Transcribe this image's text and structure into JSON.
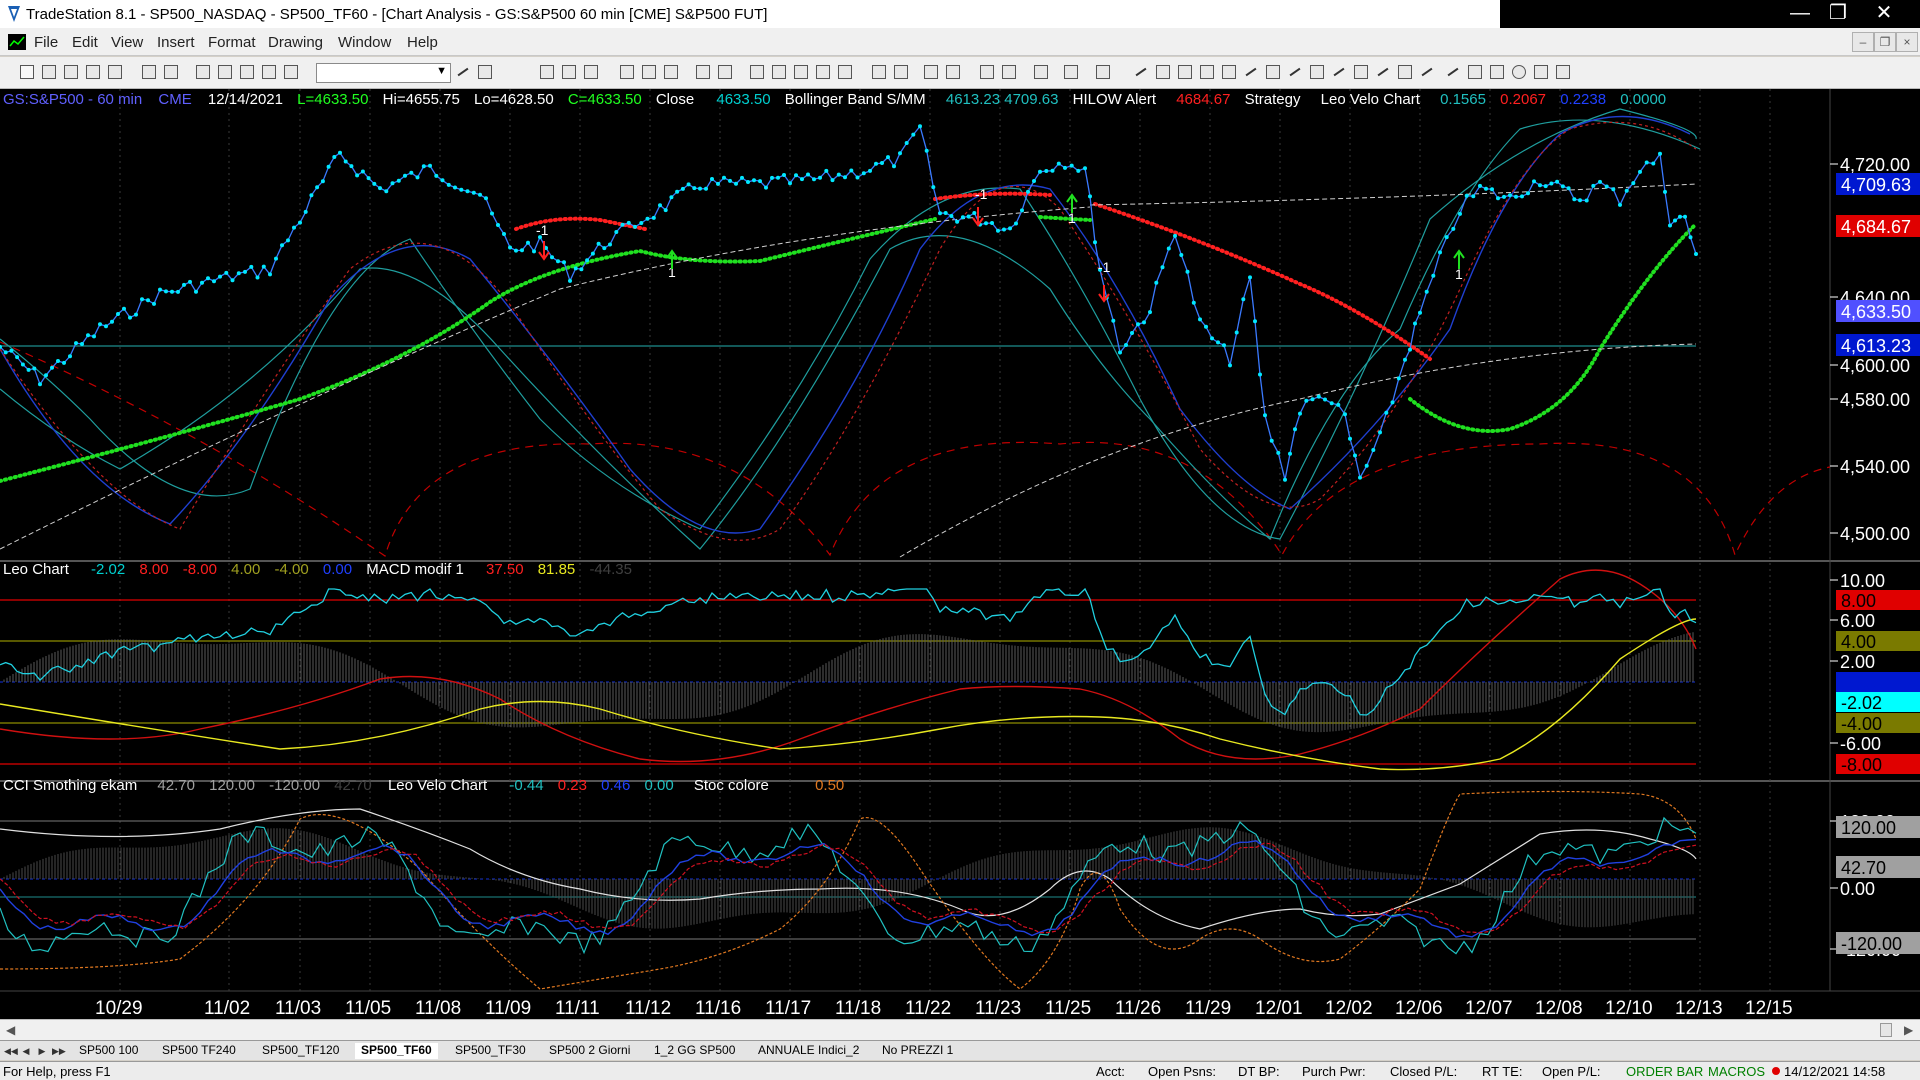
{
  "window": {
    "title": "TradeStation 8.1 - SP500_NASDAQ - SP500_TF60 - [Chart Analysis - GS:S&P500  60 min  [CME] S&P500 FUT]",
    "controls": [
      "minimize",
      "maximize",
      "close"
    ]
  },
  "menu": [
    "File",
    "Edit",
    "View",
    "Insert",
    "Format",
    "Drawing",
    "Window",
    "Help"
  ],
  "toolbar": {
    "icons": [
      "new",
      "open",
      "save",
      "copy",
      "paste",
      "print",
      "print-preview",
      "format",
      "lock",
      "tools",
      "symbol",
      "combo",
      "find",
      "bar-chart",
      "layers",
      "snapshot",
      "zoom-in",
      "zoom-out",
      "pointer",
      "trendline",
      "horizontal-line",
      "vertical-line",
      "fibonacci",
      "channel",
      "arc",
      "ellipse",
      "rectangle",
      "text"
    ]
  },
  "status_line": {
    "symbol_info": {
      "symbol": "GS:S&P500 - 60 min",
      "exchange": "CME",
      "date": "12/14/2021",
      "last": "L=4633.50",
      "high": "Hi=4655.75",
      "low": "Lo=4628.50",
      "close_c": "C=4633.50",
      "close_label": "Close",
      "close_value": "4633.50",
      "bb_label": "Bollinger Band S/MM",
      "bb_values": "4613.23  4709.63",
      "hilow_label": "HILOW Alert",
      "hilow_value": "4684.67",
      "strategy_label": "Strategy",
      "velo_label": "Leo Velo Chart",
      "velo_v1": "0.1565",
      "velo_v2": "0.2067",
      "velo_v3": "0.2238",
      "velo_v4": "0.0000"
    }
  },
  "panes": {
    "price": {
      "y_ticks": [
        "4,720.00",
        "4,640.00",
        "4,600.00",
        "4,580.00",
        "4,540.00",
        "4,500.00"
      ],
      "markers": [
        {
          "value": "4,709.63",
          "color": "#0000ff"
        },
        {
          "value": "4,684.67",
          "color": "#ff0000"
        },
        {
          "value": "4,633.50",
          "color": "#6060ff"
        },
        {
          "value": "4,613.23",
          "color": "#0000ff"
        }
      ],
      "trade_labels": [
        "-1",
        "-1",
        "1",
        "1",
        "-1",
        "1"
      ]
    },
    "leo": {
      "title": "Leo Chart",
      "values": [
        "-2.02",
        "8.00",
        "-8.00",
        "4.00",
        "-4.00",
        "0.00"
      ],
      "macd_label": "MACD modif 1",
      "macd_values": [
        "37.50",
        "81.85",
        "-44.35"
      ],
      "y_ticks": [
        "10.00",
        "6.00",
        "2.00",
        "-6.00"
      ],
      "markers": [
        {
          "value": "8.00",
          "color": "#ff0000"
        },
        {
          "value": "4.00",
          "color": "#7a7a00"
        },
        {
          "value": "0.00",
          "color": "#0000ff"
        },
        {
          "value": "-2.02",
          "color": "#00ffff"
        },
        {
          "value": "-4.00",
          "color": "#7a7a00"
        },
        {
          "value": "-8.00",
          "color": "#ff0000"
        }
      ]
    },
    "cci": {
      "title": "CCI Smothing ekam",
      "values": [
        "42.70",
        "120.00",
        "-120.00",
        "42.70"
      ],
      "velo_label": "Leo Velo Chart",
      "velo_values": [
        "-0.44",
        "0.23",
        "0.46",
        "0.00"
      ],
      "stoc_label": "Stoc colore",
      "stoc_value": "0.50",
      "y_ticks": [
        "120.00",
        "0.00",
        "-120.00"
      ],
      "markers": [
        {
          "value": "120.00",
          "color": "#a0a0a0"
        },
        {
          "value": "42.70",
          "color": "#a0a0a0"
        },
        {
          "value": "-120.00",
          "color": "#a0a0a0"
        }
      ]
    }
  },
  "x_axis": [
    "10/29",
    "11/02",
    "11/03",
    "11/05",
    "11/08",
    "11/09",
    "11/11",
    "11/12",
    "11/16",
    "11/17",
    "11/18",
    "11/22",
    "11/23",
    "11/25",
    "11/26",
    "11/29",
    "12/01",
    "12/02",
    "12/06",
    "12/07",
    "12/08",
    "12/10",
    "12/13",
    "12/15"
  ],
  "tabs": [
    "SP500 100",
    "SP500 TF240",
    "SP500_TF120",
    "SP500_TF60",
    "SP500_TF30",
    "SP500 2 Giorni",
    "1_2 GG SP500",
    "ANNUALE Indici_2",
    "No PREZZI 1"
  ],
  "active_tab": "SP500_TF60",
  "status_bar": {
    "help": "For Help, press F1",
    "acct": "Acct:",
    "open_psns": "Open Psns:",
    "dt_bp": "DT BP:",
    "purch_pwr": "Purch Pwr:",
    "closed_pl": "Closed P/L:",
    "rt_te": "RT TE:",
    "open_pl": "Open P/L:",
    "order_bar": "ORDER BAR",
    "macros": "MACROS",
    "datetime": "14/12/2021 14:58"
  }
}
